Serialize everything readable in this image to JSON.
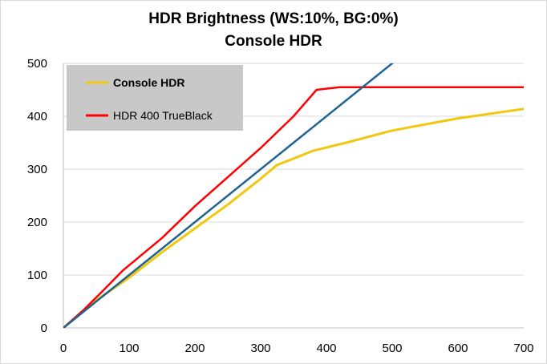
{
  "chart_data": {
    "type": "line",
    "title": "HDR Brightness (WS:10%, BG:0%)",
    "subtitle": "Console HDR",
    "xlabel": "",
    "ylabel": "",
    "xlim": [
      0,
      700
    ],
    "ylim": [
      0,
      500
    ],
    "xticks": [
      0,
      100,
      200,
      300,
      400,
      500,
      600,
      700
    ],
    "yticks": [
      0,
      100,
      200,
      300,
      400,
      500
    ],
    "grid": "horizontal",
    "legend_position": "top-left",
    "series": [
      {
        "name": "Console HDR",
        "color": "#f2c80f",
        "bold_label": true,
        "points": [
          [
            0,
            0
          ],
          [
            50,
            52
          ],
          [
            100,
            95
          ],
          [
            150,
            143
          ],
          [
            200,
            188
          ],
          [
            250,
            233
          ],
          [
            300,
            282
          ],
          [
            325,
            308
          ],
          [
            350,
            320
          ],
          [
            380,
            335
          ],
          [
            430,
            350
          ],
          [
            500,
            373
          ],
          [
            600,
            396
          ],
          [
            700,
            414
          ]
        ]
      },
      {
        "name": "HDR 400 TrueBlack",
        "color": "#ff0000",
        "bold_label": false,
        "points": [
          [
            0,
            0
          ],
          [
            30,
            33
          ],
          [
            60,
            70
          ],
          [
            90,
            108
          ],
          [
            150,
            170
          ],
          [
            200,
            230
          ],
          [
            250,
            285
          ],
          [
            300,
            340
          ],
          [
            350,
            400
          ],
          [
            385,
            450
          ],
          [
            420,
            455
          ],
          [
            500,
            455
          ],
          [
            600,
            455
          ],
          [
            700,
            455
          ]
        ]
      },
      {
        "name": "",
        "color": "#1f6391",
        "bold_label": false,
        "points": [
          [
            0,
            0
          ],
          [
            505,
            505
          ]
        ]
      }
    ]
  }
}
